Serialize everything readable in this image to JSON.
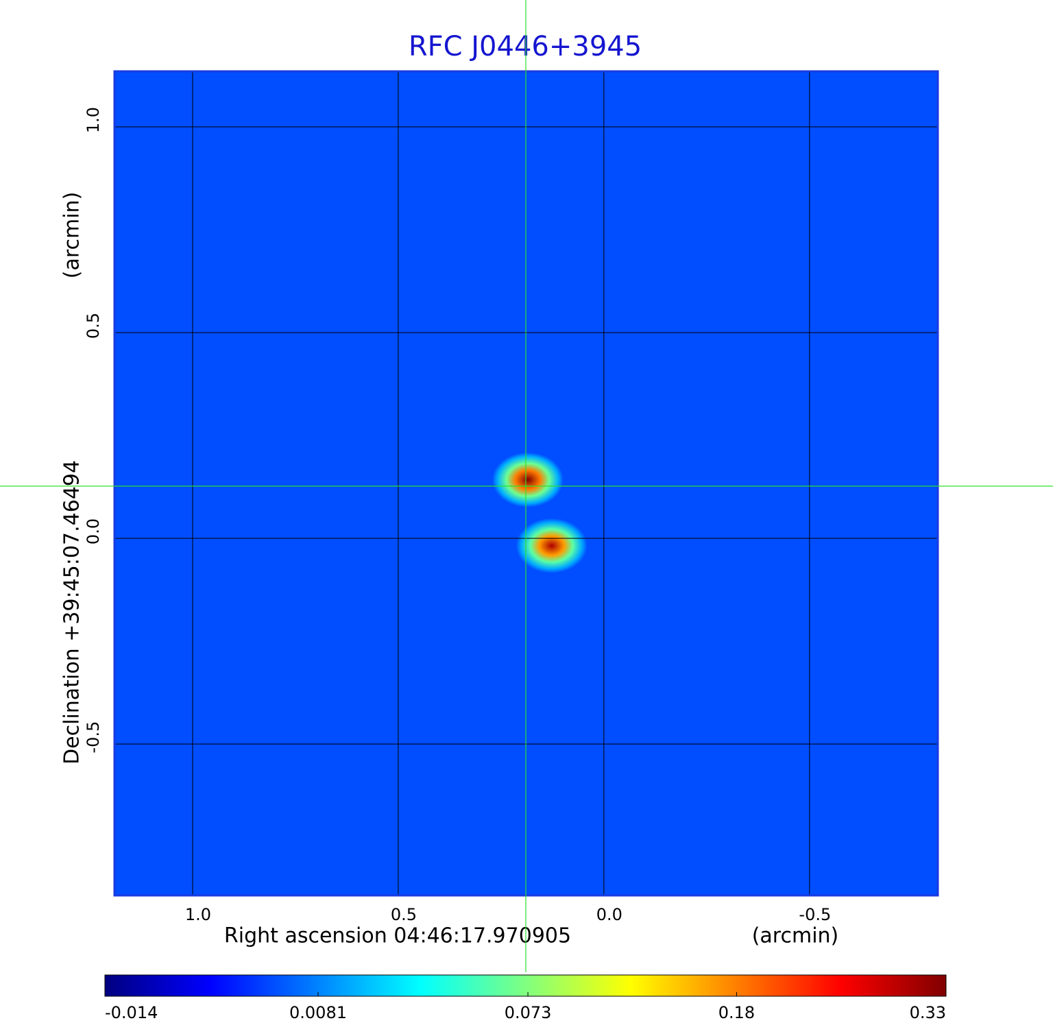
{
  "chart_data": {
    "type": "image",
    "title": "RFC J0446+3945",
    "xlabel": "Right ascension  04:46:17.970905",
    "xunit": "(arcmin)",
    "ylabel": "Declination  +39:45:07.46494",
    "yunit": "(arcmin)",
    "xlim": [
      1.19,
      -0.812
    ],
    "ylim": [
      -0.868,
      1.135
    ],
    "xticks": [
      {
        "value": 1,
        "label": "1.0"
      },
      0.5,
      {
        "value": 0,
        "label": "0.0"
      },
      -0.5
    ],
    "yticks": [
      -0.5,
      {
        "value": 0,
        "label": "0.0"
      },
      0.5,
      {
        "value": 1,
        "label": "1.0"
      }
    ],
    "grid": true,
    "colormap": "jet",
    "color_scale": "sqrt",
    "clim": [
      -0.014,
      0.33
    ],
    "cticks": [
      -0.014,
      0.0081,
      0.073,
      0.18,
      0.33
    ],
    "background_value": 0,
    "peaks": {
      "x": [
        0.185,
        0.127
      ],
      "y": [
        0.142,
        -0.018
      ],
      "values": [
        0.33,
        0.3
      ]
    }
  }
}
